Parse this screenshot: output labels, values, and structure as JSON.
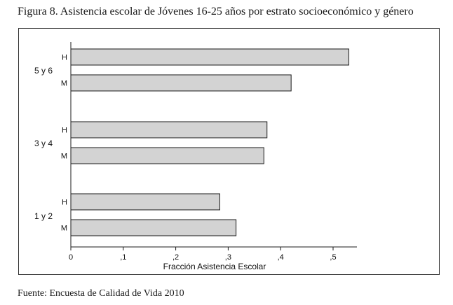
{
  "figure": {
    "title": "Figura 8. Asistencia escolar de Jóvenes 16-25 años por estrato socioeconómico y género",
    "source": "Fuente: Encuesta de Calidad de Vida 2010"
  },
  "colors": {
    "bar_fill": "#d3d3d3",
    "bar_stroke": "#1a1a1a",
    "axis": "#1a1a1a"
  },
  "chart_data": {
    "type": "bar",
    "orientation": "horizontal",
    "xlabel": "Fracción Asistencia Escolar",
    "xlim": [
      0,
      0.55
    ],
    "xticks": [
      0,
      0.1,
      0.2,
      0.3,
      0.4,
      0.5
    ],
    "xtick_labels": [
      "0",
      ",1",
      ",2",
      ",3",
      ",4",
      ",5"
    ],
    "grid": false,
    "groups": [
      {
        "label": "5 y 6",
        "bars": [
          {
            "label": "H",
            "value": 0.53
          },
          {
            "label": "M",
            "value": 0.42
          }
        ]
      },
      {
        "label": "3 y 4",
        "bars": [
          {
            "label": "H",
            "value": 0.374
          },
          {
            "label": "M",
            "value": 0.368
          }
        ]
      },
      {
        "label": "1 y 2",
        "bars": [
          {
            "label": "H",
            "value": 0.284
          },
          {
            "label": "M",
            "value": 0.315
          }
        ]
      }
    ]
  }
}
